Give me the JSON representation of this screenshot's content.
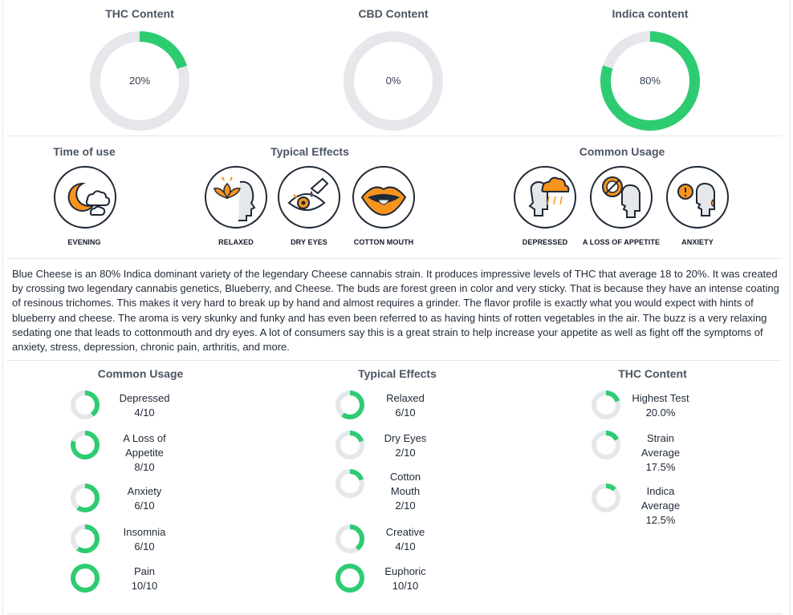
{
  "top_stats": [
    {
      "title": "THC Content",
      "value_label": "20%",
      "fraction": 0.2
    },
    {
      "title": "CBD Content",
      "value_label": "0%",
      "fraction": 0.0
    },
    {
      "title": "Indica content",
      "value_label": "80%",
      "fraction": 0.8
    }
  ],
  "time_of_use": {
    "title": "Time of use",
    "items": [
      {
        "label": "EVENING",
        "icon": "moon-cloud-icon"
      }
    ]
  },
  "typical_effects_icons": {
    "title": "Typical Effects",
    "items": [
      {
        "label": "RELAXED",
        "icon": "lotus-head-icon"
      },
      {
        "label": "DRY EYES",
        "icon": "dry-eye-icon"
      },
      {
        "label": "COTTON MOUTH",
        "icon": "mouth-icon"
      }
    ]
  },
  "common_usage_icons": {
    "title": "Common Usage",
    "items": [
      {
        "label": "DEPRESSED",
        "icon": "rain-cloud-head-icon"
      },
      {
        "label": "A LOSS OF APPETITE",
        "icon": "no-food-head-icon"
      },
      {
        "label": "ANXIETY",
        "icon": "anxious-head-icon"
      }
    ]
  },
  "description": "Blue Cheese is an 80% Indica dominant variety of the legendary Cheese cannabis strain. It produces impressive levels of THC that average 18 to 20%. It was created by crossing two legendary cannabis genetics, Blueberry, and Cheese. The buds are forest green in color and very sticky. That is because they have an intense coating of resinous trichomes. This makes it very hard to break up by hand and almost requires a grinder. The flavor profile is exactly what you would expect with hints of blueberry and cheese. The aroma is very skunky and funky and has even been referred to as having hints of rotten vegetables in the air. The buzz is a very relaxing sedating one that leads to cottonmouth and dry eyes. A lot of consumers say this is a great strain to help increase your appetite as well as fight off the symptoms of anxiety, stress, depression, chronic pain, arthritis, and more.",
  "ratings": [
    {
      "title": "Common Usage",
      "items": [
        {
          "lines": [
            "Depressed",
            "4/10"
          ],
          "fraction": 0.4
        },
        {
          "lines": [
            "A Loss of",
            "Appetite",
            "8/10"
          ],
          "fraction": 0.8
        },
        {
          "lines": [
            "Anxiety",
            "6/10"
          ],
          "fraction": 0.6
        },
        {
          "lines": [
            "Insomnia",
            "6/10"
          ],
          "fraction": 0.6
        },
        {
          "lines": [
            "Pain",
            "10/10"
          ],
          "fraction": 1.0
        }
      ]
    },
    {
      "title": "Typical Effects",
      "items": [
        {
          "lines": [
            "Relaxed",
            "6/10"
          ],
          "fraction": 0.6
        },
        {
          "lines": [
            "Dry Eyes",
            "2/10"
          ],
          "fraction": 0.2
        },
        {
          "lines": [
            "Cotton",
            "Mouth",
            "2/10"
          ],
          "fraction": 0.2
        },
        {
          "lines": [
            "Creative",
            "4/10"
          ],
          "fraction": 0.4
        },
        {
          "lines": [
            "Euphoric",
            "10/10"
          ],
          "fraction": 1.0
        }
      ]
    },
    {
      "title": "THC Content",
      "items": [
        {
          "lines": [
            "Highest Test",
            "20.0%"
          ],
          "fraction": 0.2
        },
        {
          "lines": [
            "Strain",
            "Average",
            "17.5%"
          ],
          "fraction": 0.175
        },
        {
          "lines": [
            "Indica",
            "Average",
            "12.5%"
          ],
          "fraction": 0.125
        }
      ]
    }
  ],
  "colors": {
    "accent": "#2ecc71",
    "track": "#e5e7eb",
    "icon_orange": "#f7941d",
    "icon_outline": "#1f2937"
  }
}
